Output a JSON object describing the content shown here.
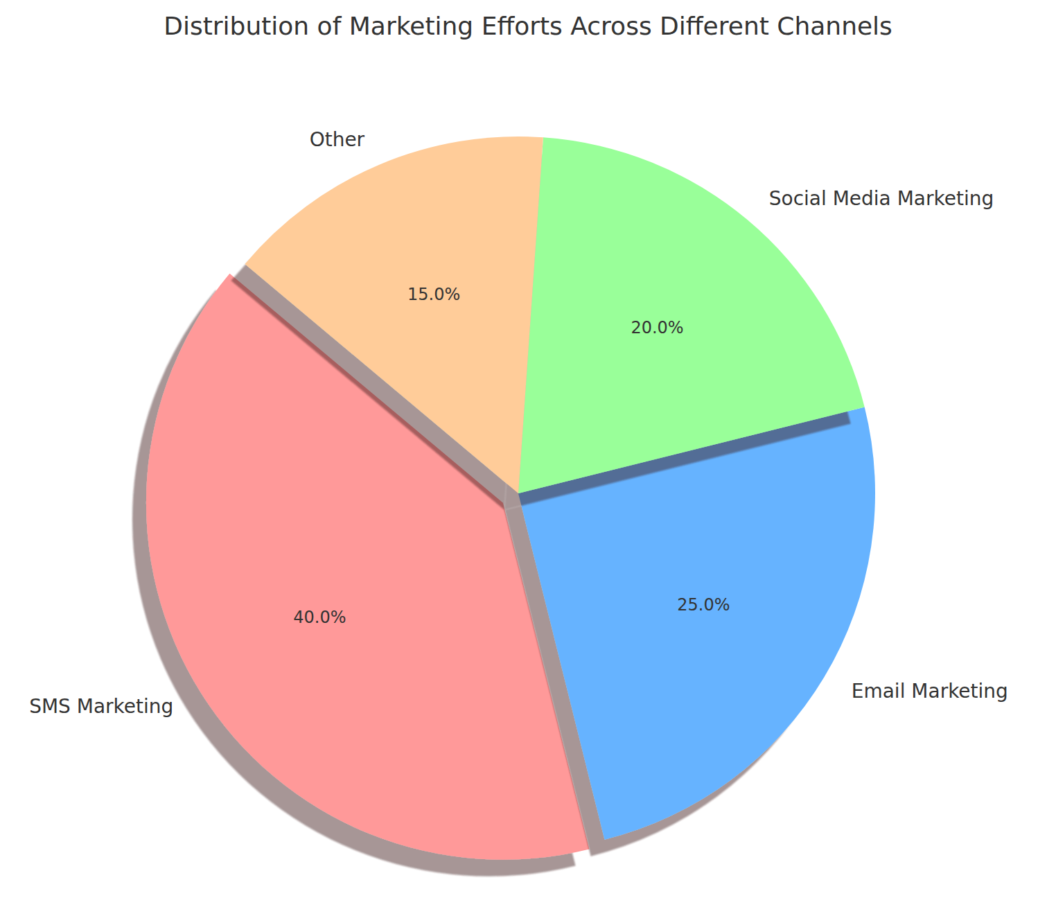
{
  "chart_data": {
    "type": "pie",
    "title": "Distribution of Marketing Efforts Across Different Channels",
    "categories": [
      "SMS Marketing",
      "Email Marketing",
      "Social Media Marketing",
      "Other"
    ],
    "values": [
      40,
      25,
      20,
      15
    ],
    "value_labels": [
      "40.0%",
      "25.0%",
      "20.0%",
      "15.0%"
    ],
    "colors": [
      "#ff9999",
      "#66b3ff",
      "#99ff99",
      "#ffcc99"
    ],
    "data_labels": true
  }
}
